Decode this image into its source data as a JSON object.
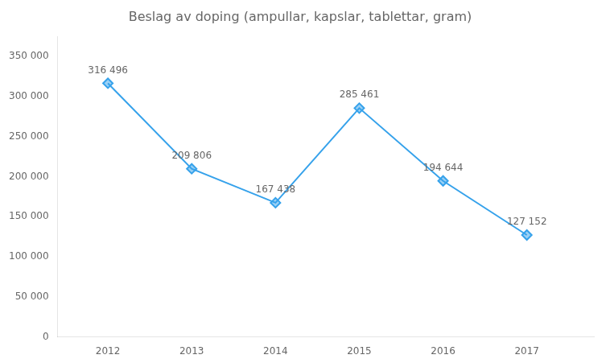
{
  "chart_data": {
    "type": "line",
    "title": "Beslag av doping (ampullar, kapslar, tablettar, gram)",
    "x": [
      2012,
      2013,
      2014,
      2015,
      2016,
      2017
    ],
    "values": [
      316496,
      209806,
      167438,
      285461,
      194644,
      127152
    ],
    "value_labels": [
      "316 496",
      "209 806",
      "167 438",
      "285 461",
      "194 644",
      "127 152"
    ],
    "data_labels": true,
    "xlim": [
      2011.4,
      2017.8
    ],
    "xticks": [
      2012,
      2013,
      2014,
      2015,
      2016,
      2017
    ],
    "ylim": [
      0,
      375000
    ],
    "yticks": [
      0,
      {
        "value": 50000,
        "label": "50 000"
      },
      {
        "value": 100000,
        "label": "100 000"
      },
      {
        "value": 150000,
        "label": "150 000"
      },
      {
        "value": 200000,
        "label": "200 000"
      },
      {
        "value": 250000,
        "label": "250 000"
      },
      {
        "value": 300000,
        "label": "300 000"
      },
      {
        "value": 350000,
        "label": "350 000"
      }
    ],
    "grid": false,
    "marker": "diamond"
  }
}
